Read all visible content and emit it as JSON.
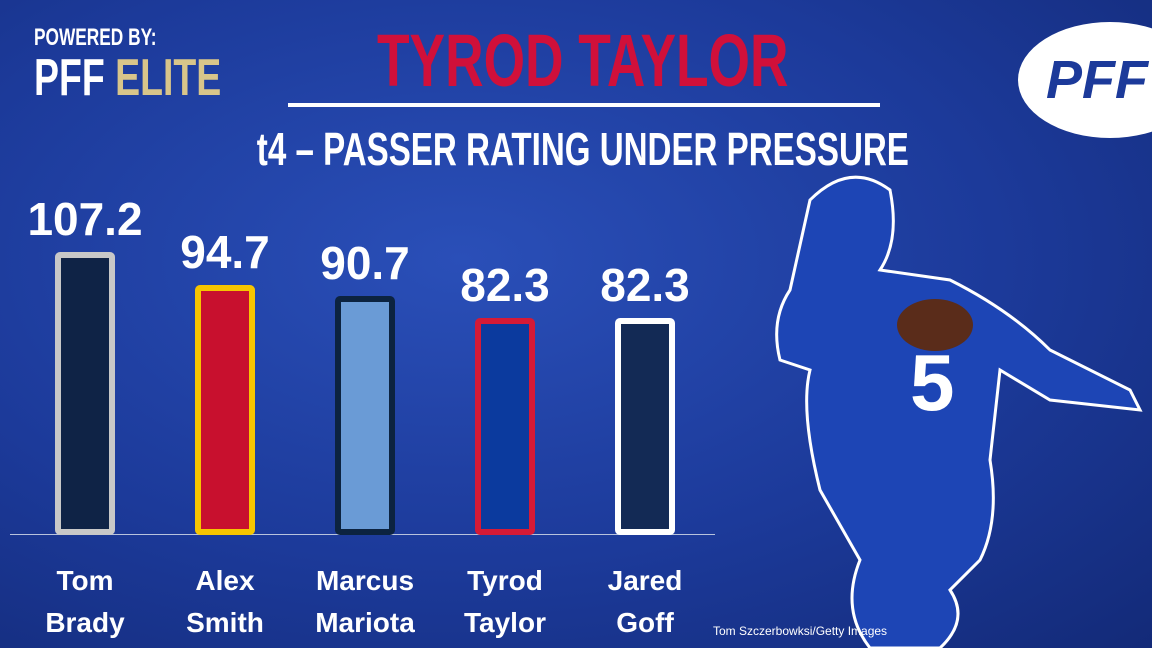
{
  "powered_by": "POWERED BY:",
  "brand": "PFF",
  "brand_suffix": "ELITE",
  "logo": "PFF",
  "credit": "Tom Szczerbowksi/Getty Images",
  "chart_data": {
    "type": "bar",
    "title": "TYROD TAYLOR",
    "subtitle": "t4 – PASSER RATING UNDER PRESSURE",
    "categories": [
      "Tom Brady",
      "Alex Smith",
      "Marcus Mariota",
      "Tyrod Taylor",
      "Jared Goff"
    ],
    "values": [
      107.2,
      94.7,
      90.7,
      82.3,
      82.3
    ],
    "colors": [
      "#0f2346",
      "#c8102e",
      "#6a9bd6",
      "#0b3a9e",
      "#132a55"
    ],
    "border_colors": [
      "#c8c8c8",
      "#f6c500",
      "#0c2340",
      "#d51a36",
      "#ffffff"
    ]
  }
}
